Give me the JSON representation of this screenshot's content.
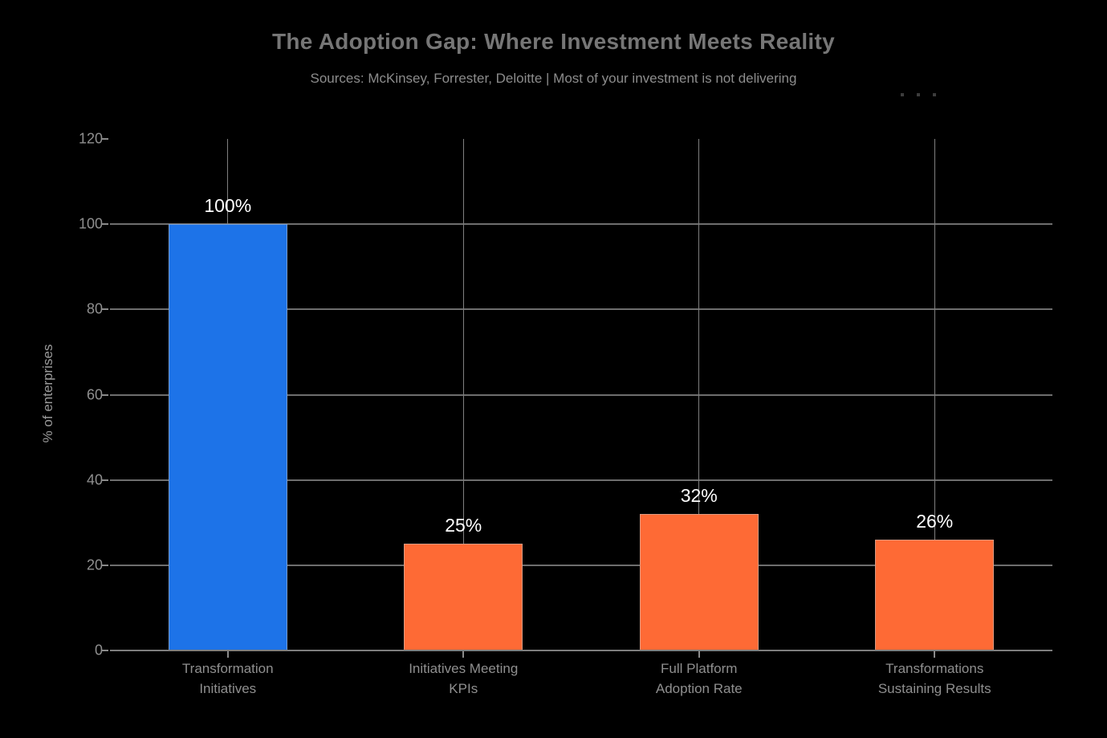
{
  "header": {
    "more_options_icon": "ellipsis-dots"
  },
  "chart_data": {
    "type": "bar",
    "title": "The Adoption Gap: Where Investment Meets Reality",
    "subtitle": "Sources: McKinsey, Forrester, Deloitte | Most of your investment is not delivering",
    "xlabel": "",
    "ylabel": "% of enterprises",
    "ylim": [
      0,
      120
    ],
    "yticks": [
      0,
      20,
      40,
      60,
      80,
      100,
      120
    ],
    "grid": true,
    "legend_position": "none",
    "categories": [
      "Transformation Initiatives",
      "Initiatives Meeting KPIs",
      "Full Platform Adoption Rate",
      "Transformations Sustaining Results"
    ],
    "category_label_lines": [
      [
        "Transformation",
        "Initiatives"
      ],
      [
        "Initiatives Meeting",
        "KPIs"
      ],
      [
        "Full Platform",
        "Adoption Rate"
      ],
      [
        "Transformations",
        "Sustaining Results"
      ]
    ],
    "values": [
      100,
      25,
      32,
      26
    ],
    "data_labels": [
      "100%",
      "25%",
      "32%",
      "26%"
    ],
    "bar_colors": [
      "#1d73e8",
      "#fe6a35",
      "#fe6a35",
      "#fe6a35"
    ],
    "colors": {
      "background": "#000000",
      "highlight_bar": "#1d73e8",
      "default_bar": "#fe6a35",
      "gridline": "#7f7f7f",
      "title_text": "#767676",
      "subtitle_text": "#8c8c8c",
      "axis_text": "#8f8f8f",
      "data_label_text": "#ffffff"
    }
  }
}
